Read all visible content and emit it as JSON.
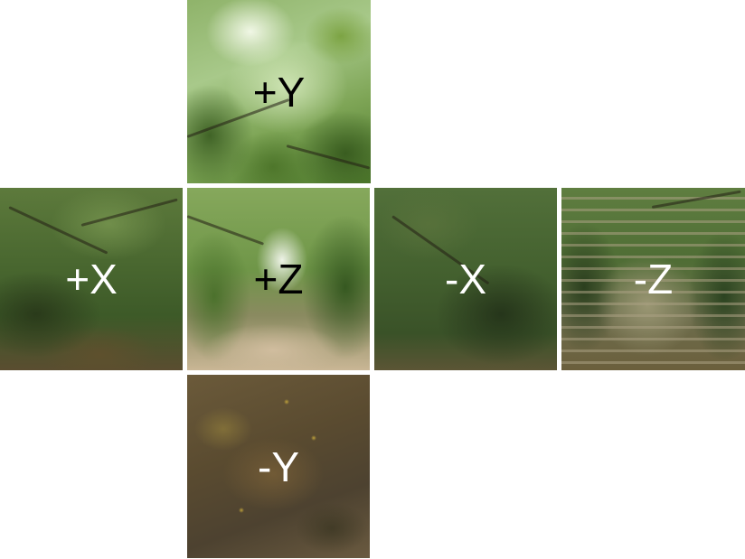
{
  "cubemap": {
    "faces": {
      "pos_y": {
        "label": "+Y"
      },
      "pos_x": {
        "label": "+X"
      },
      "pos_z": {
        "label": "+Z"
      },
      "neg_x": {
        "label": "-X"
      },
      "neg_z": {
        "label": "-Z"
      },
      "neg_y": {
        "label": "-Y"
      }
    }
  },
  "colors": {
    "background": "#ffffff",
    "label_dark": "#000000",
    "label_light": "#ffffff"
  }
}
